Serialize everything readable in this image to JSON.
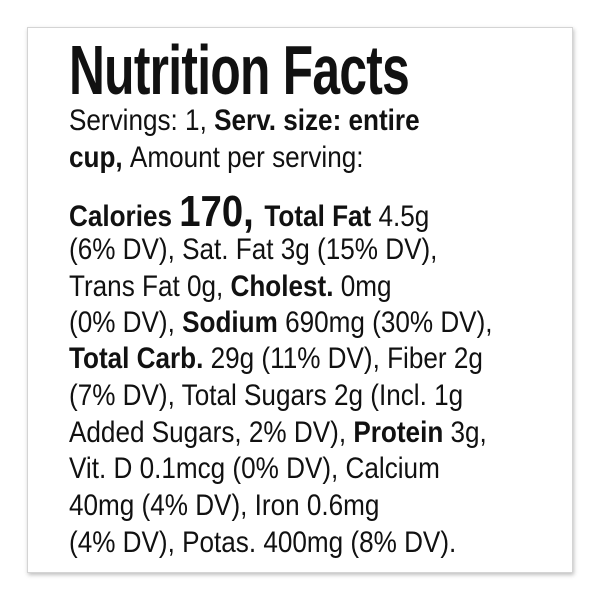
{
  "title": "Nutrition Facts",
  "lines": [
    [
      {
        "text": "Servings: 1, ",
        "style": "regular"
      },
      {
        "text": "Serv. size: entire",
        "style": "bold"
      }
    ],
    [
      {
        "text": "cup, ",
        "style": "bold"
      },
      {
        "text": "Amount per serving:",
        "style": "regular"
      }
    ],
    [
      {
        "text": "Calories ",
        "style": "bold"
      },
      {
        "text": "170, ",
        "style": "large"
      },
      {
        "text": "Total Fat ",
        "style": "bold"
      },
      {
        "text": "4.5g",
        "style": "regular"
      }
    ],
    [
      {
        "text": "(6% DV), Sat. Fat 3g (15% DV),",
        "style": "regular"
      }
    ],
    [
      {
        "text": "Trans Fat 0g, ",
        "style": "regular"
      },
      {
        "text": "Cholest.",
        "style": "bold"
      },
      {
        "text": " 0mg",
        "style": "regular"
      }
    ],
    [
      {
        "text": "(0% DV), ",
        "style": "regular"
      },
      {
        "text": "Sodium",
        "style": "bold"
      },
      {
        "text": " 690mg (30% DV),",
        "style": "regular"
      }
    ],
    [
      {
        "text": "Total Carb.",
        "style": "bold"
      },
      {
        "text": " 29g (11% DV), Fiber 2g",
        "style": "regular"
      }
    ],
    [
      {
        "text": "(7% DV), Total Sugars 2g (Incl. 1g",
        "style": "regular"
      }
    ],
    [
      {
        "text": "Added Sugars, 2% DV), ",
        "style": "regular"
      },
      {
        "text": "Protein",
        "style": "bold"
      },
      {
        "text": " 3g,",
        "style": "regular"
      }
    ],
    [
      {
        "text": "Vit. D 0.1mcg (0% DV), Calcium",
        "style": "regular"
      }
    ],
    [
      {
        "text": "40mg (4% DV), Iron 0.6mg",
        "style": "regular"
      }
    ],
    [
      {
        "text": "(4% DV), Potas. 400mg (8% DV).",
        "style": "regular"
      }
    ]
  ]
}
